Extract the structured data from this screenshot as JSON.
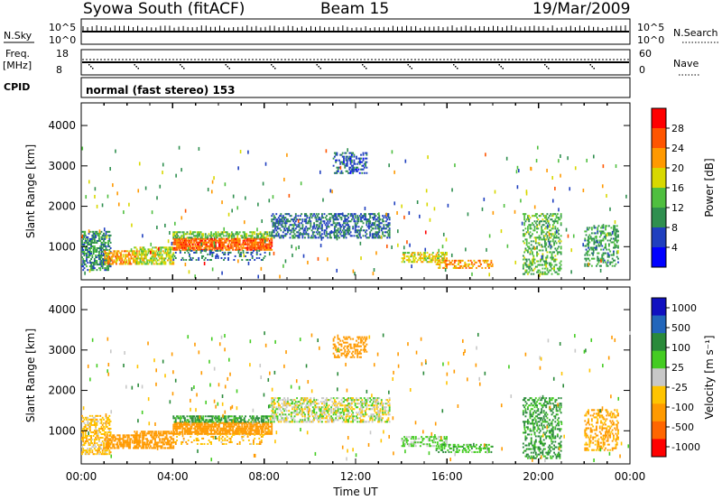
{
  "header": {
    "station": "Syowa South (fitACF)",
    "beam": "Beam 15",
    "date": "19/Mar/2009"
  },
  "nsky_panel": {
    "label": "N.Sky",
    "left_ticks": [
      "10^5",
      "10^0"
    ],
    "right_ticks": [
      "10^5",
      "10^0"
    ],
    "right_label": "N.Search"
  },
  "freq_panel": {
    "label_line1": "Freq.",
    "label_line2": "[MHz]",
    "left_ticks": [
      "18",
      "8"
    ],
    "right_ticks": [
      "60",
      "0"
    ],
    "right_label": "Nave"
  },
  "cpid_panel": {
    "label": "CPID",
    "value": "normal (fast stereo) 153"
  },
  "xaxis": {
    "label": "Time UT",
    "ticks": [
      "00:00",
      "04:00",
      "08:00",
      "12:00",
      "16:00",
      "20:00",
      "00:00"
    ]
  },
  "colors": {
    "power_scale": [
      "#0000ff",
      "#1f3fbf",
      "#2f8f4f",
      "#4fbf3f",
      "#d8d800",
      "#ff9900",
      "#ff5500",
      "#ff0000"
    ],
    "velocity_scale": [
      "#ff0000",
      "#ff6600",
      "#ff9a00",
      "#ffc400",
      "#c8c8c8",
      "#44cc22",
      "#2a8a3a",
      "#2266bb",
      "#1010c0"
    ]
  },
  "chart_data": [
    {
      "type": "heatmap",
      "name": "power",
      "ylabel": "Slant Range [km]",
      "ylim": [
        180,
        4560
      ],
      "yticks": [
        "1000",
        "2000",
        "3000",
        "4000"
      ],
      "ytick_values": [
        1000,
        2000,
        3000,
        4000
      ],
      "xlim_hours": [
        0,
        24
      ],
      "colorbar": {
        "label": "Power [dB]",
        "ticks": [
          "4",
          "8",
          "12",
          "16",
          "20",
          "24",
          "28"
        ],
        "range": [
          0,
          32
        ]
      },
      "regions": [
        {
          "t0": 0.0,
          "t1": 1.3,
          "r0": 400,
          "r1": 1350,
          "value": 10,
          "density": 0.55
        },
        {
          "t0": 1.0,
          "t1": 2.5,
          "r0": 550,
          "r1": 900,
          "value": 22,
          "density": 0.55
        },
        {
          "t0": 2.3,
          "t1": 4.0,
          "r0": 550,
          "r1": 1000,
          "value": 17,
          "density": 0.6
        },
        {
          "t0": 4.0,
          "t1": 8.3,
          "r0": 900,
          "r1": 1200,
          "value": 25,
          "density": 0.8
        },
        {
          "t0": 4.0,
          "t1": 8.3,
          "r0": 1200,
          "r1": 1350,
          "value": 14,
          "density": 0.55
        },
        {
          "t0": 4.0,
          "t1": 8.0,
          "r0": 650,
          "r1": 900,
          "value": 8,
          "density": 0.2
        },
        {
          "t0": 8.3,
          "t1": 13.5,
          "r0": 1200,
          "r1": 1800,
          "value": 8,
          "density": 0.45
        },
        {
          "t0": 11.0,
          "t1": 12.5,
          "r0": 2800,
          "r1": 3300,
          "value": 7,
          "density": 0.35
        },
        {
          "t0": 14.0,
          "t1": 16.0,
          "r0": 600,
          "r1": 850,
          "value": 18,
          "density": 0.5
        },
        {
          "t0": 15.5,
          "t1": 18.0,
          "r0": 450,
          "r1": 650,
          "value": 22,
          "density": 0.45
        },
        {
          "t0": 19.3,
          "t1": 21.0,
          "r0": 300,
          "r1": 1800,
          "value": 13,
          "density": 0.35
        },
        {
          "t0": 22.0,
          "t1": 23.5,
          "r0": 500,
          "r1": 1500,
          "value": 11,
          "density": 0.35
        }
      ]
    },
    {
      "type": "heatmap",
      "name": "velocity",
      "ylabel": "Slant Range [km]",
      "ylim": [
        180,
        4560
      ],
      "yticks": [
        "1000",
        "2000",
        "3000",
        "4000"
      ],
      "ytick_values": [
        1000,
        2000,
        3000,
        4000
      ],
      "xlim_hours": [
        0,
        24
      ],
      "colorbar": {
        "label": "Velocity [m s⁻¹]",
        "ticks": [
          "1000",
          "500",
          "100",
          "25",
          "-25",
          "-100",
          "-500",
          "-1000"
        ]
      },
      "regions": [
        {
          "t0": 0.0,
          "t1": 1.3,
          "r0": 400,
          "r1": 1350,
          "value": -60,
          "density": 0.5
        },
        {
          "t0": 1.0,
          "t1": 2.5,
          "r0": 550,
          "r1": 900,
          "value": -300,
          "density": 0.55
        },
        {
          "t0": 2.3,
          "t1": 4.0,
          "r0": 550,
          "r1": 1000,
          "value": -250,
          "density": 0.6
        },
        {
          "t0": 4.0,
          "t1": 8.3,
          "r0": 900,
          "r1": 1200,
          "value": -250,
          "density": 0.8
        },
        {
          "t0": 4.0,
          "t1": 8.3,
          "r0": 1200,
          "r1": 1350,
          "value": 120,
          "density": 0.55
        },
        {
          "t0": 4.0,
          "t1": 8.0,
          "r0": 650,
          "r1": 900,
          "value": -80,
          "density": 0.2
        },
        {
          "t0": 8.3,
          "t1": 13.5,
          "r0": 1200,
          "r1": 1800,
          "value": 0,
          "density": 0.45
        },
        {
          "t0": 11.0,
          "t1": 12.5,
          "r0": 2800,
          "r1": 3300,
          "value": -250,
          "density": 0.35
        },
        {
          "t0": 14.0,
          "t1": 16.0,
          "r0": 600,
          "r1": 850,
          "value": 40,
          "density": 0.5
        },
        {
          "t0": 15.5,
          "t1": 18.0,
          "r0": 450,
          "r1": 650,
          "value": 80,
          "density": 0.45
        },
        {
          "t0": 19.3,
          "t1": 21.0,
          "r0": 300,
          "r1": 1800,
          "value": 120,
          "density": 0.35
        },
        {
          "t0": 22.0,
          "t1": 23.5,
          "r0": 500,
          "r1": 1500,
          "value": -120,
          "density": 0.35
        }
      ]
    }
  ]
}
